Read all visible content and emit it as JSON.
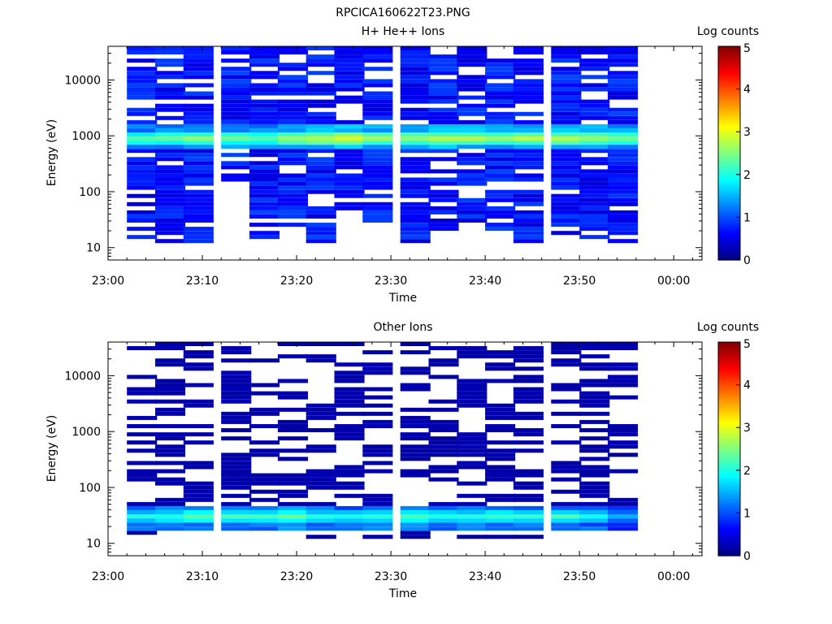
{
  "figure_title": "RPCICA160622T23.PNG",
  "colorbar": {
    "label": "Log counts",
    "min": 0,
    "max": 5,
    "ticks": [
      "0",
      "1",
      "2",
      "3",
      "4",
      "5"
    ],
    "colormap": "jet"
  },
  "chart_data": [
    {
      "type": "heatmap",
      "title": "H+ He++ Ions",
      "xlabel": "Time",
      "ylabel": "Energy (eV)",
      "x_range": [
        "23:00",
        "00:03"
      ],
      "x_ticks": [
        "23:00",
        "23:10",
        "23:20",
        "23:30",
        "23:40",
        "23:50",
        "00:00"
      ],
      "y_scale": "log",
      "y_range": [
        6,
        40000
      ],
      "y_ticks": [
        "10",
        "100",
        "1000",
        "10000"
      ],
      "time_bins_start": [
        "23:02",
        "23:05",
        "23:08",
        "23:12",
        "23:15",
        "23:18",
        "23:21",
        "23:24",
        "23:27",
        "23:31",
        "23:34",
        "23:37",
        "23:40",
        "23:43",
        "23:47",
        "23:50",
        "23:53"
      ],
      "bin_width_min": 3.2,
      "energy_min_ev": 12,
      "energy_max_ev": 40000,
      "energy_channels": 48,
      "peak_energy_ev": 900,
      "peak_log_counts": [
        2.3,
        2.4,
        2.5,
        2.4,
        2.3,
        2.6,
        2.8,
        2.9,
        2.6,
        2.6,
        2.7,
        2.7,
        2.6,
        2.7,
        2.7,
        2.6,
        2.5
      ],
      "lowest_occupied_energy_ev": [
        12,
        12,
        12,
        160,
        15,
        20,
        12,
        40,
        30,
        12,
        20,
        30,
        20,
        12,
        15,
        15,
        12
      ],
      "high_energy_level": 0.75,
      "white_gap_fraction": 0.18
    },
    {
      "type": "heatmap",
      "title": "Other Ions",
      "xlabel": "Time",
      "ylabel": "Energy (eV)",
      "x_range": [
        "23:00",
        "00:03"
      ],
      "x_ticks": [
        "23:00",
        "23:10",
        "23:20",
        "23:30",
        "23:40",
        "23:50",
        "00:00"
      ],
      "y_scale": "log",
      "y_range": [
        6,
        40000
      ],
      "y_ticks": [
        "10",
        "100",
        "1000",
        "10000"
      ],
      "time_bins_start": [
        "23:02",
        "23:05",
        "23:08",
        "23:12",
        "23:15",
        "23:18",
        "23:21",
        "23:24",
        "23:27",
        "23:31",
        "23:34",
        "23:37",
        "23:40",
        "23:43",
        "23:47",
        "23:50",
        "23:53"
      ],
      "bin_width_min": 3.2,
      "energy_min_ev": 12,
      "energy_max_ev": 40000,
      "energy_channels": 48,
      "peak_energy_ev": 30,
      "peak_log_counts": [
        2.0,
        2.1,
        2.3,
        2.2,
        2.2,
        2.4,
        2.1,
        2.0,
        2.1,
        2.2,
        2.1,
        2.1,
        2.2,
        2.1,
        2.2,
        2.0,
        1.6
      ],
      "lowest_occupied_energy_ev": [
        12,
        17,
        12,
        17,
        17,
        12,
        12,
        17,
        12,
        12,
        17,
        12,
        12,
        12,
        12,
        17,
        17
      ],
      "high_energy_level": 0.2,
      "white_gap_fraction": 0.5
    }
  ]
}
